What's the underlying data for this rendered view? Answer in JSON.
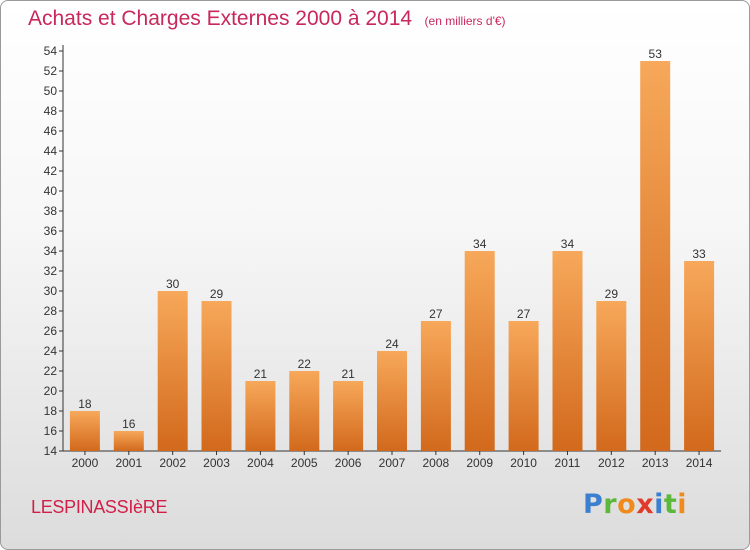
{
  "header": {
    "title": "Achats et Charges Externes 2000 à 2014",
    "subtitle": "(en milliers d'€)"
  },
  "footer": {
    "commune": "LESPINASSIèRE",
    "brand": {
      "text": "Proxiti",
      "letter_colors": [
        "#3a7fd0",
        "#5cb83a",
        "#f08a1c",
        "#e23a2a",
        "#3a7fd0",
        "#5cb83a",
        "#f08a1c"
      ]
    }
  },
  "colors": {
    "bar_light": "#f7a85a",
    "bar_dark": "#d2691c",
    "title": "#c8285c",
    "axis": "#333333"
  },
  "chart_data": {
    "type": "bar",
    "categories": [
      "2000",
      "2001",
      "2002",
      "2003",
      "2004",
      "2005",
      "2006",
      "2007",
      "2008",
      "2009",
      "2010",
      "2011",
      "2012",
      "2013",
      "2014"
    ],
    "values": [
      18,
      16,
      30,
      29,
      21,
      22,
      21,
      24,
      27,
      34,
      27,
      34,
      29,
      53,
      33
    ],
    "title": "Achats et Charges Externes 2000 à 2014",
    "xlabel": "",
    "ylabel": "",
    "ylim": [
      14,
      54
    ],
    "ytick_step": 2,
    "grid": false,
    "legend": "none",
    "data_labels": true
  }
}
